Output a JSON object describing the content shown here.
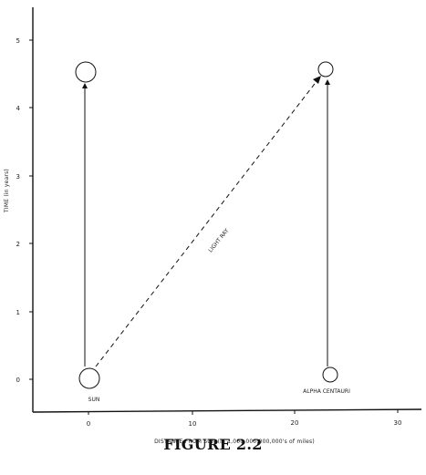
{
  "caption": "FIGURE 2.2",
  "xlabel": "DISTANCE FROM SUN (in 1,000,000,000,000's of miles)",
  "ylabel": "TIME (in years)",
  "x_ticks": [
    "0",
    "10",
    "20",
    "30"
  ],
  "y_ticks": [
    "0",
    "1",
    "2",
    "3",
    "4",
    "5"
  ],
  "labels": {
    "sun": "SUN",
    "alpha_centauri": "ALPHA CENTAURI",
    "light_ray": "LIGHT RAY"
  }
}
